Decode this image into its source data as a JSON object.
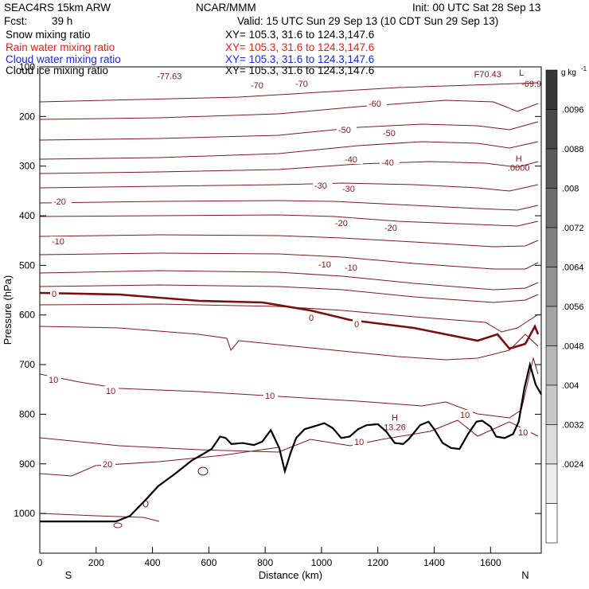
{
  "header": {
    "model": "SEAC4RS 15km ARW",
    "org": "NCAR/MMM",
    "init": "Init: 00 UTC Sat 28 Sep 13",
    "fcst_label": "Fcst:",
    "fcst_value": "39 h",
    "valid": "Valid: 15 UTC Sun 29 Sep 13 (10 CDT Sun 29 Sep 13)",
    "fields": [
      {
        "name": "Snow mixing ratio",
        "xy": "XY= 105.3, 31.6 to 124.3,147.6",
        "color": "#000000"
      },
      {
        "name": "Rain water mixing ratio",
        "xy": "XY= 105.3, 31.6 to 124.3,147.6",
        "color": "#e0201e"
      },
      {
        "name": "Cloud water mixing ratio",
        "xy": "XY= 105.3, 31.6 to 124.3,147.6",
        "color": "#1a2ad8"
      },
      {
        "name": "Cloud ice mixing ratio",
        "xy": "XY= 105.3, 31.6 to 124.3,147.6",
        "color": "#000000"
      }
    ]
  },
  "chart_data": {
    "type": "contour-cross-section",
    "xlabel": "Distance (km)",
    "ylabel": "Pressure (hPa)",
    "xlim": [
      0,
      1780
    ],
    "ylim": [
      1080,
      100
    ],
    "xticks": [
      0,
      200,
      400,
      600,
      800,
      1000,
      1200,
      1400,
      1600
    ],
    "yticks": [
      100,
      200,
      300,
      400,
      500,
      600,
      700,
      800,
      900,
      1000
    ],
    "x_end_labels": {
      "left": "S",
      "right": "N"
    },
    "colorbar": {
      "unit": "g kg",
      "unit_exponent": "-1",
      "labels": [
        ".0096",
        ".0088",
        ".008",
        ".0072",
        ".0064",
        ".0056",
        ".0048",
        ".004",
        ".0032",
        ".0024"
      ]
    },
    "temperature_contours_c": [
      {
        "level": -70,
        "labels": [
          "-70",
          "-70"
        ]
      },
      {
        "level": -60,
        "labels": [
          "-60"
        ]
      },
      {
        "level": -50,
        "labels": [
          "-50",
          "-50"
        ]
      },
      {
        "level": -40,
        "labels": [
          "-40",
          "-40"
        ]
      },
      {
        "level": -30,
        "labels": [
          "-30",
          "-30"
        ]
      },
      {
        "level": -20,
        "labels": [
          "-20",
          "-20",
          "-20"
        ]
      },
      {
        "level": -10,
        "labels": [
          "-10",
          "-10",
          "-10"
        ]
      },
      {
        "level": 0,
        "labels": [
          "0",
          "0",
          "0"
        ]
      },
      {
        "level": 10,
        "labels": [
          "10",
          "10",
          "10",
          "10",
          "10",
          "10"
        ]
      },
      {
        "level": 20,
        "labels": [
          "20"
        ]
      }
    ],
    "extrema_labels": [
      {
        "text": "-77.63",
        "x_km": 460,
        "p": 125
      },
      {
        "text": "L",
        "x_km": 1710,
        "p": 118
      },
      {
        "text": "-69.9",
        "x_km": 1745,
        "p": 140
      },
      {
        "text": "F70.43",
        "x_km": 1590,
        "p": 121
      },
      {
        "text": "H",
        "x_km": 1700,
        "p": 291
      },
      {
        "text": ".0000",
        "x_km": 1700,
        "p": 309
      },
      {
        "text": "H",
        "x_km": 1260,
        "p": 813
      },
      {
        "text": "13.26",
        "x_km": 1260,
        "p": 832
      }
    ],
    "terrain_surface": {
      "x": [
        0,
        270,
        320,
        380,
        420,
        480,
        540,
        580,
        610,
        640,
        660,
        680,
        720,
        760,
        790,
        820,
        850,
        870,
        890,
        910,
        940,
        970,
        1010,
        1040,
        1070,
        1100,
        1130,
        1160,
        1200,
        1230,
        1260,
        1290,
        1310,
        1350,
        1380,
        1400,
        1430,
        1460,
        1490,
        1520,
        1550,
        1570,
        1600,
        1620,
        1650,
        1680,
        1700,
        1720,
        1740,
        1760,
        1780
      ],
      "p": [
        1016,
        1016,
        1005,
        970,
        945,
        920,
        893,
        880,
        870,
        845,
        848,
        860,
        858,
        862,
        855,
        832,
        868,
        915,
        878,
        848,
        830,
        825,
        818,
        828,
        848,
        845,
        830,
        822,
        820,
        835,
        858,
        860,
        850,
        822,
        815,
        830,
        858,
        868,
        870,
        840,
        815,
        813,
        825,
        845,
        848,
        840,
        815,
        748,
        700,
        740,
        760
      ]
    }
  }
}
